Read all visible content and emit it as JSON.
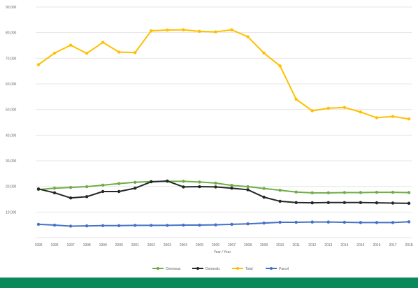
{
  "colors": {
    "footer_band": "#0a8a5c",
    "grid": "#e6e6e6"
  },
  "chart_data": {
    "type": "line",
    "title": "",
    "xlabel": "Year / Year",
    "ylabel": "",
    "ylim": [
      0,
      90000
    ],
    "yticks": [
      0,
      10000,
      20000,
      30000,
      40000,
      50000,
      60000,
      70000,
      80000,
      90000
    ],
    "ytick_labels": [
      "",
      "10,000",
      "20,000",
      "30,000",
      "40,000",
      "50,000",
      "60,000",
      "70,000",
      "80,000",
      "90,000"
    ],
    "grid": true,
    "legend_position": "bottom",
    "categories": [
      "1995",
      "1996",
      "1997",
      "1998",
      "1999",
      "2000",
      "2001",
      "2002",
      "2003",
      "2004",
      "2005",
      "2006",
      "2007",
      "2008",
      "2009",
      "2010",
      "2011",
      "2012",
      "2013",
      "2014",
      "2015",
      "2016",
      "2017",
      "2018"
    ],
    "series": [
      {
        "name": "Overseas",
        "color": "#70ad47",
        "values": [
          18800,
          19300,
          19600,
          19900,
          20500,
          21100,
          21600,
          21900,
          22000,
          22000,
          21700,
          21300,
          20400,
          19900,
          19200,
          18500,
          17800,
          17500,
          17500,
          17600,
          17600,
          17700,
          17700,
          17600
        ]
      },
      {
        "name": "Domestic",
        "color": "#262626",
        "values": [
          19000,
          17500,
          15500,
          16000,
          18000,
          18000,
          19300,
          21800,
          22100,
          19800,
          19900,
          19800,
          19300,
          18700,
          15800,
          14200,
          13700,
          13600,
          13700,
          13700,
          13700,
          13600,
          13500,
          13400
        ]
      },
      {
        "name": "Total",
        "color": "#ffc000",
        "values": [
          67500,
          72000,
          75100,
          71900,
          76200,
          72400,
          72200,
          80700,
          81000,
          81100,
          80500,
          80300,
          81100,
          78400,
          72000,
          67000,
          54000,
          49500,
          50500,
          50800,
          49000,
          46800,
          47300,
          46300
        ]
      },
      {
        "name": "Parcel",
        "color": "#4472c4",
        "values": [
          5200,
          4900,
          4500,
          4600,
          4700,
          4700,
          4800,
          4800,
          4800,
          4900,
          4900,
          5000,
          5200,
          5400,
          5700,
          6000,
          6000,
          6100,
          6100,
          6000,
          5900,
          5900,
          5900,
          6200
        ]
      }
    ]
  }
}
